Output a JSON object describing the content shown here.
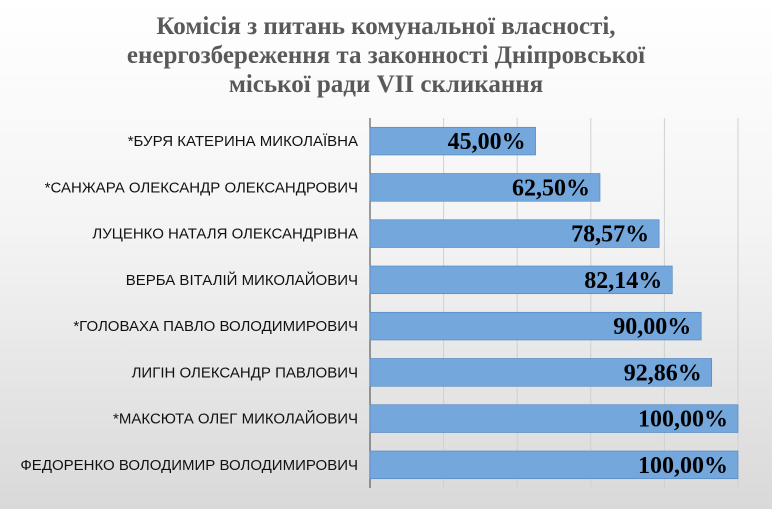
{
  "chart_data": {
    "type": "bar",
    "orientation": "horizontal",
    "title": [
      "Комісія з питань комунальної власності,",
      "енергозбереження та законності Дніпровської",
      "міської ради VII скликання"
    ],
    "categories": [
      "*БУРЯ КАТЕРИНА МИКОЛАЇВНА",
      "*САНЖАРА ОЛЕКСАНДР ОЛЕКСАНДРОВИЧ",
      "ЛУЦЕНКО НАТАЛЯ ОЛЕКСАНДРІВНА",
      "ВЕРБА ВІТАЛІЙ МИКОЛАЙОВИЧ",
      "*ГОЛОВАХА ПАВЛО ВОЛОДИМИРОВИЧ",
      "ЛИГІН ОЛЕКСАНДР ПАВЛОВИЧ",
      "*МАКСЮТА ОЛЕГ МИКОЛАЙОВИЧ",
      "ФЕДОРЕНКО ВОЛОДИМИР ВОЛОДИМИРОВИЧ"
    ],
    "values": [
      45.0,
      62.5,
      78.57,
      82.14,
      90.0,
      92.86,
      100.0,
      100.0
    ],
    "data_labels": [
      "45,00%",
      "62,50%",
      "78,57%",
      "82,14%",
      "90,00%",
      "92,86%",
      "100,00%",
      "100,00%"
    ],
    "xlim": [
      0,
      100
    ],
    "grid": true,
    "legend": "none",
    "colors": {
      "bar": "#74a7dc",
      "bar_edge": "#4f81bd",
      "grid": "#d0d0d0",
      "axis": "#404040"
    }
  }
}
